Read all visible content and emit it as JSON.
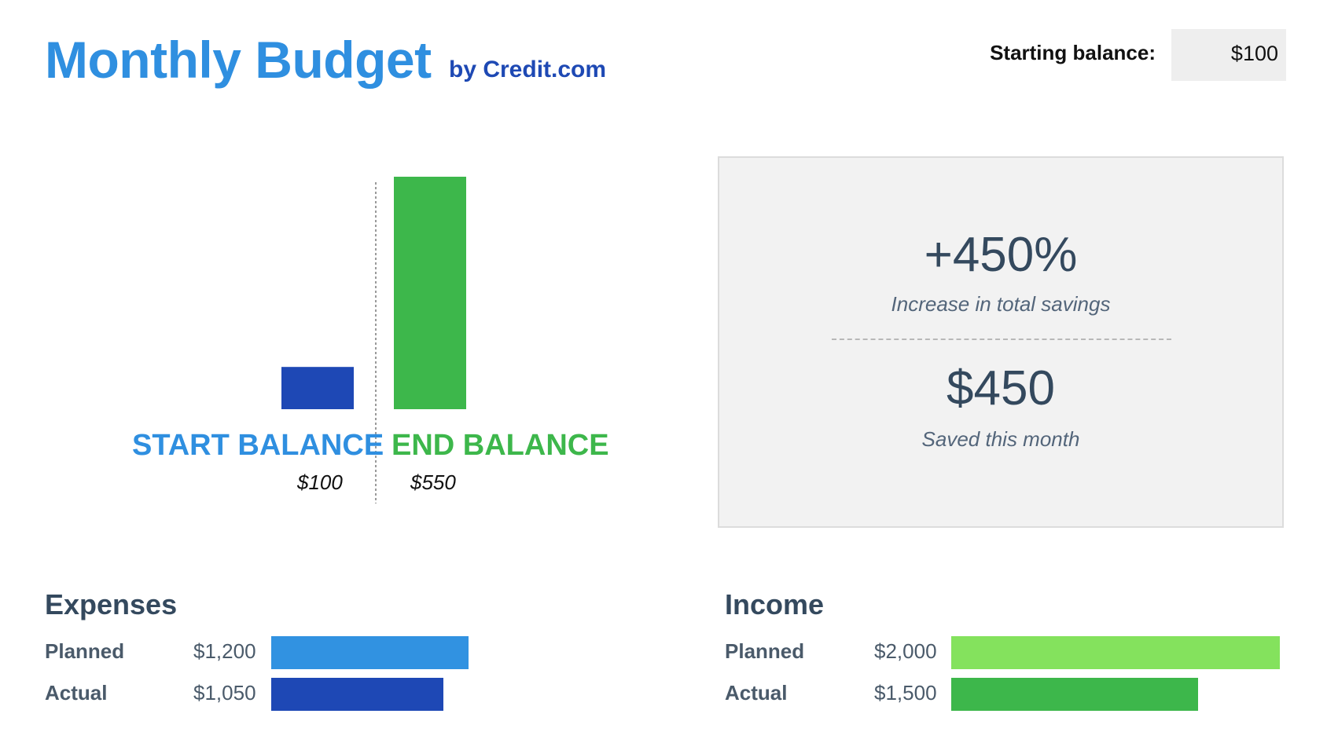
{
  "header": {
    "title": "Monthly Budget",
    "byline": "by Credit.com",
    "starting_balance_label": "Starting balance:",
    "starting_balance_value": "$100"
  },
  "colors": {
    "title_blue": "#2f8fe0",
    "byline_blue": "#1e49b4",
    "start_bar": "#1e48b5",
    "end_bar": "#3db74b",
    "expense_planned": "#3192e1",
    "expense_actual": "#1e48b5",
    "income_planned": "#84e25d",
    "income_actual": "#3db74b"
  },
  "chart_data": {
    "type": "bar",
    "categories": [
      "START BALANCE",
      "END BALANCE"
    ],
    "values": [
      100,
      550
    ],
    "value_labels": [
      "$100",
      "$550"
    ],
    "title": "",
    "xlabel": "",
    "ylabel": "",
    "ylim": [
      0,
      550
    ],
    "grid": false,
    "legend": "none"
  },
  "summary": {
    "increase_pct": "+450%",
    "increase_caption": "Increase in total savings",
    "saved_amount": "$450",
    "saved_caption": "Saved this month"
  },
  "expenses": {
    "title": "Expenses",
    "rows": [
      {
        "label": "Planned",
        "value_text": "$1,200",
        "value": 1200
      },
      {
        "label": "Actual",
        "value_text": "$1,050",
        "value": 1050
      }
    ]
  },
  "income": {
    "title": "Income",
    "rows": [
      {
        "label": "Planned",
        "value_text": "$2,000",
        "value": 2000
      },
      {
        "label": "Actual",
        "value_text": "$1,500",
        "value": 1500
      }
    ]
  }
}
